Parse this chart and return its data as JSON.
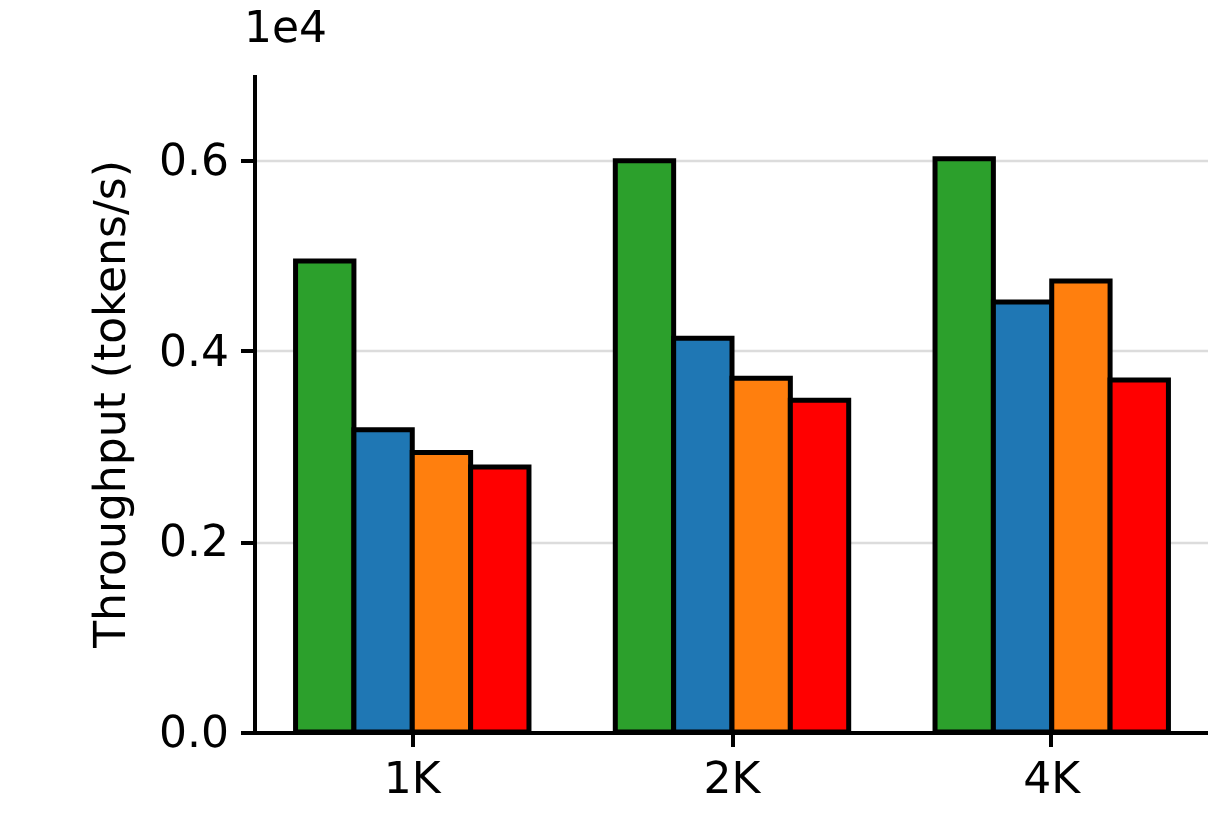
{
  "chart_data": {
    "type": "bar",
    "ylabel": "Throughput (tokens/s)",
    "annotations": [
      "1e4"
    ],
    "categories": [
      "1K",
      "2K",
      "4K"
    ],
    "series": [
      {
        "color": "#2ca02c",
        "values": [
          0.494,
          0.599,
          0.601
        ]
      },
      {
        "color": "#1f77b4",
        "values": [
          0.317,
          0.413,
          0.451
        ]
      },
      {
        "color": "#ff7f0e",
        "values": [
          0.293,
          0.371,
          0.473
        ]
      },
      {
        "color": "#ff0000",
        "values": [
          0.278,
          0.348,
          0.369
        ]
      }
    ],
    "ylim": [
      0,
      0.69
    ],
    "yticks": [
      {
        "value": 0,
        "label": "0.0"
      },
      {
        "value": 0.2,
        "label": "0.2"
      },
      {
        "value": 0.4,
        "label": "0.4"
      },
      {
        "value": 0.6,
        "label": "0.6"
      }
    ],
    "grid": "y",
    "legend": false
  }
}
